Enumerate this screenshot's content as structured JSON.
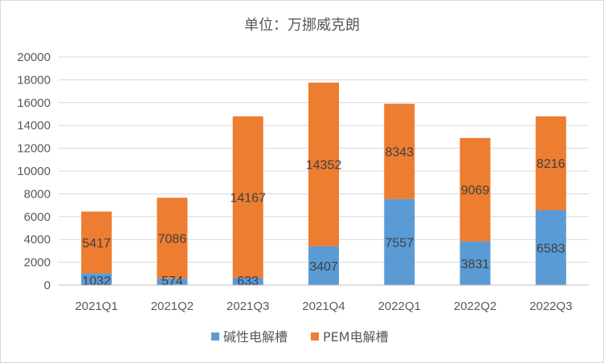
{
  "chart_data": {
    "type": "bar",
    "stacked": true,
    "title": "单位：万挪威克朗",
    "categories": [
      "2021Q1",
      "2021Q2",
      "2021Q3",
      "2021Q4",
      "2022Q1",
      "2022Q2",
      "2022Q3"
    ],
    "series": [
      {
        "name": "碱性电解槽",
        "color": "#5b9bd5",
        "values": [
          1032,
          574,
          633,
          3407,
          7557,
          3831,
          6583
        ]
      },
      {
        "name": "PEM电解槽",
        "color": "#ed7d31",
        "values": [
          5417,
          7086,
          14167,
          14352,
          8343,
          9069,
          8216
        ]
      }
    ],
    "ylim": [
      0,
      20000
    ],
    "yticks": [
      0,
      2000,
      4000,
      6000,
      8000,
      10000,
      12000,
      14000,
      16000,
      18000,
      20000
    ],
    "grid": true,
    "legend_position": "bottom",
    "xlabel": "",
    "ylabel": ""
  }
}
